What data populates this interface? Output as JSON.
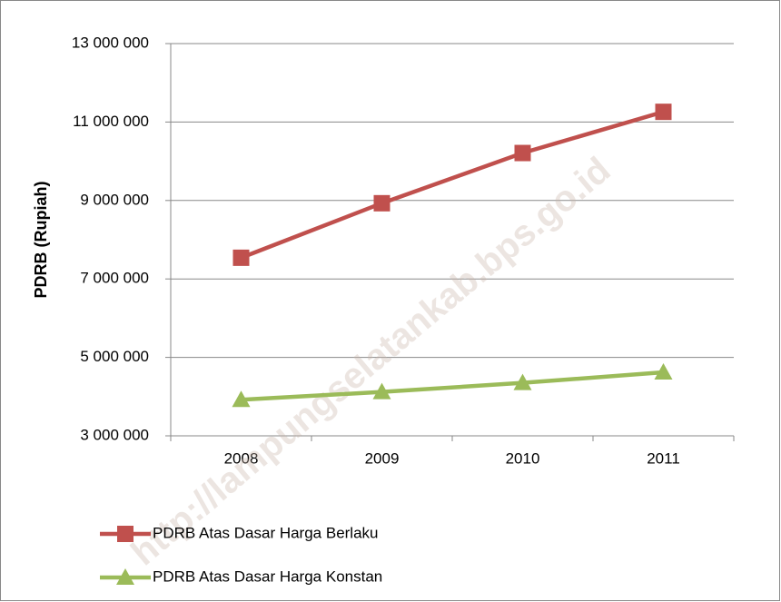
{
  "chart_data": {
    "type": "line",
    "y_label": "PDRB (Rupiah)",
    "watermark": "http://lampungselatankab.bps.go.id",
    "categories": [
      "2008",
      "2009",
      "2010",
      "2011"
    ],
    "series": [
      {
        "name": "PDRB Atas Dasar Harga Berlaku",
        "color": "#c0504d",
        "marker": "square",
        "values": [
          7540000,
          8930000,
          10210000,
          11260000
        ]
      },
      {
        "name": "PDRB Atas Dasar Harga Konstan",
        "color": "#9bbb59",
        "marker": "triangle",
        "values": [
          3920000,
          4120000,
          4350000,
          4620000
        ]
      }
    ],
    "ylim": [
      3000000,
      13000000
    ],
    "yticks": [
      {
        "value": 3000000,
        "label": "3 000 000"
      },
      {
        "value": 5000000,
        "label": "5 000 000"
      },
      {
        "value": 7000000,
        "label": "7 000 000"
      },
      {
        "value": 9000000,
        "label": "9 000 000"
      },
      {
        "value": 11000000,
        "label": "11 000 000"
      },
      {
        "value": 13000000,
        "label": "13 000 000"
      }
    ],
    "grid": true,
    "legend": "bottom"
  }
}
